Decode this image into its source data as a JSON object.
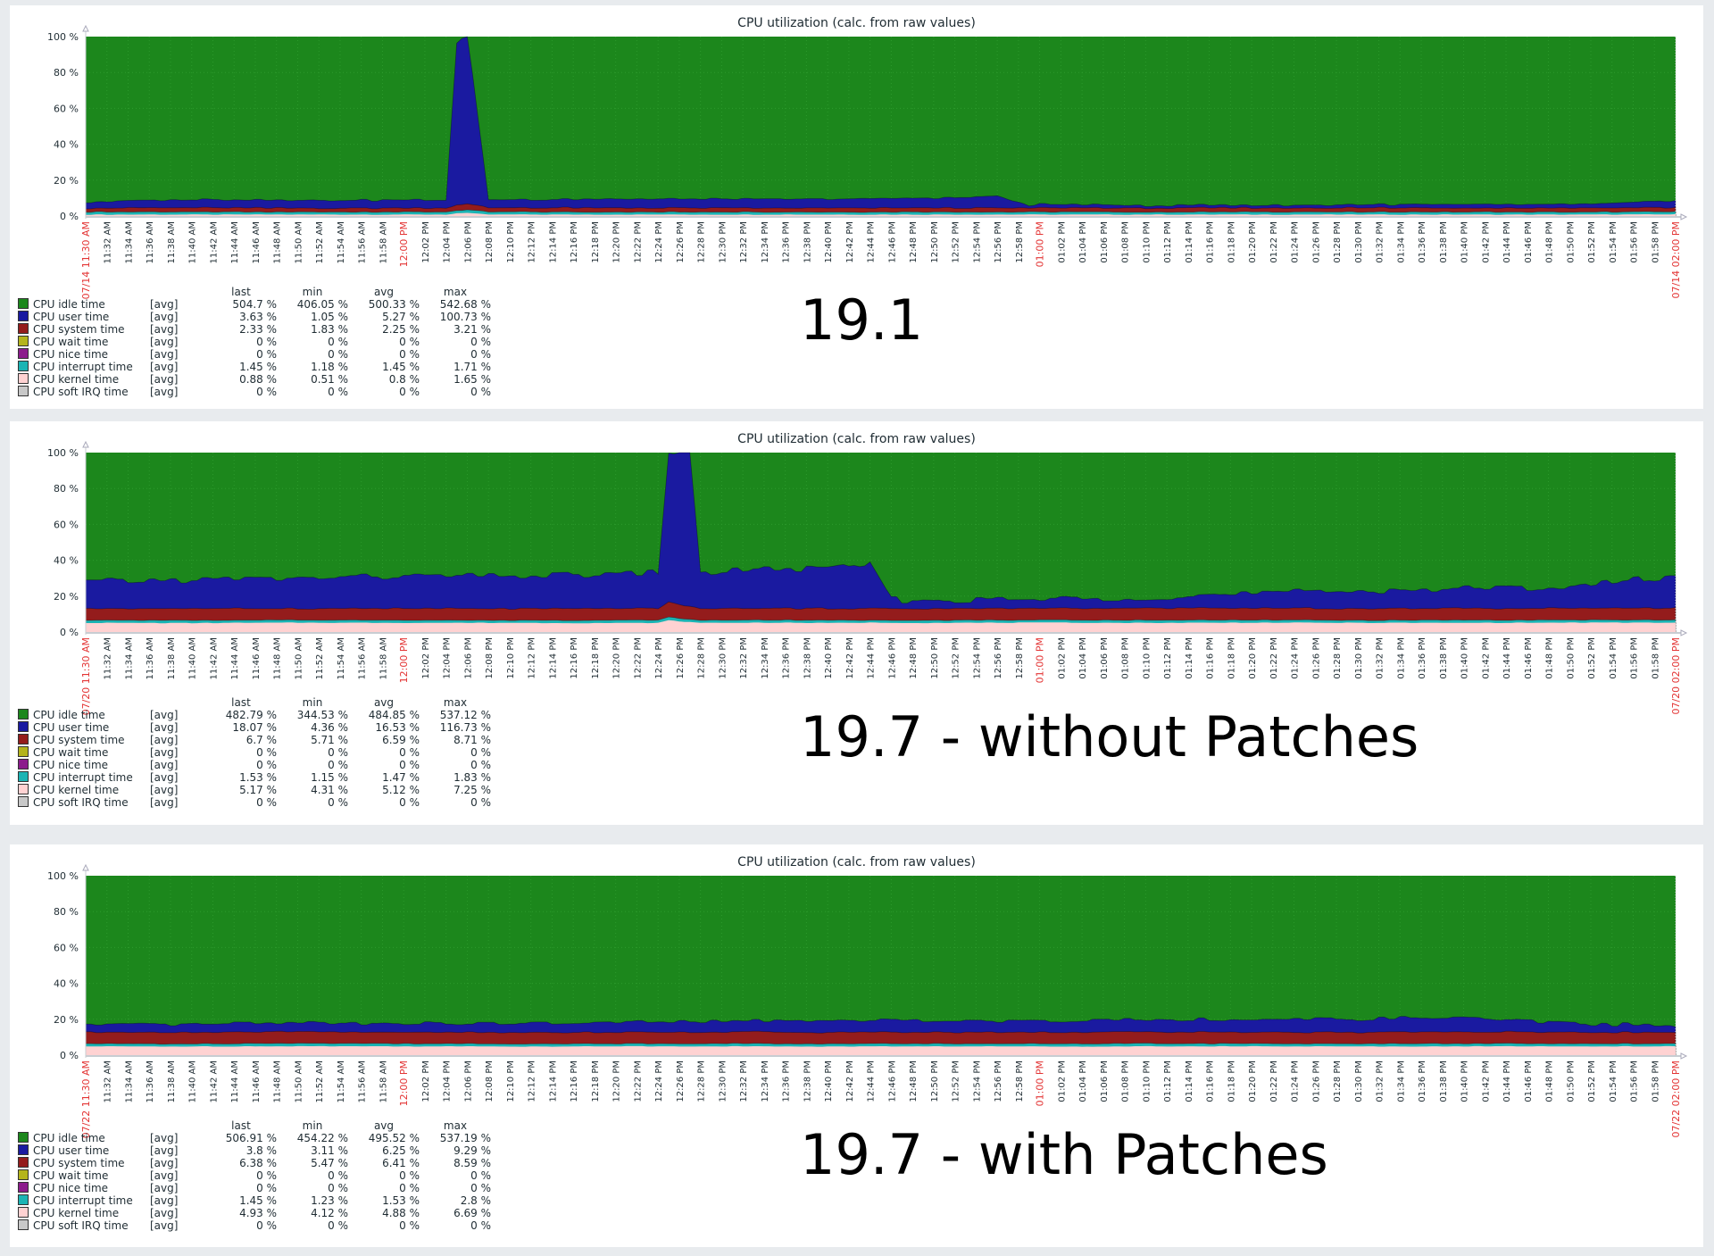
{
  "colors": {
    "idle": "#1c871c",
    "user": "#1a1aa0",
    "system": "#941c1c",
    "wait": "#b4b41c",
    "nice": "#8c1c8c",
    "interrupt": "#1cb4b4",
    "kernel": "#ffd2d2",
    "softirq": "#c8c8c8",
    "time_major": "#e33434",
    "page_bg": "#e8ebee"
  },
  "legend_headers": {
    "last": "last",
    "min": "min",
    "avg": "avg",
    "max": "max"
  },
  "y_ticks": [
    "100 %",
    "80 %",
    "60 %",
    "40 %",
    "20 %",
    "0 %"
  ],
  "x_tick_times": [
    "11:32 AM",
    "11:34 AM",
    "11:36 AM",
    "11:38 AM",
    "11:40 AM",
    "11:42 AM",
    "11:44 AM",
    "11:46 AM",
    "11:48 AM",
    "11:50 AM",
    "11:52 AM",
    "11:54 AM",
    "11:56 AM",
    "11:58 AM",
    "12:00 PM",
    "12:02 PM",
    "12:04 PM",
    "12:06 PM",
    "12:08 PM",
    "12:10 PM",
    "12:12 PM",
    "12:14 PM",
    "12:16 PM",
    "12:18 PM",
    "12:20 PM",
    "12:22 PM",
    "12:24 PM",
    "12:26 PM",
    "12:28 PM",
    "12:30 PM",
    "12:32 PM",
    "12:34 PM",
    "12:36 PM",
    "12:38 PM",
    "12:40 PM",
    "12:42 PM",
    "12:44 PM",
    "12:46 PM",
    "12:48 PM",
    "12:50 PM",
    "12:52 PM",
    "12:54 PM",
    "12:56 PM",
    "12:58 PM",
    "01:00 PM",
    "01:02 PM",
    "01:04 PM",
    "01:06 PM",
    "01:08 PM",
    "01:10 PM",
    "01:12 PM",
    "01:14 PM",
    "01:16 PM",
    "01:18 PM",
    "01:20 PM",
    "01:22 PM",
    "01:24 PM",
    "01:26 PM",
    "01:28 PM",
    "01:30 PM",
    "01:32 PM",
    "01:34 PM",
    "01:36 PM",
    "01:38 PM",
    "01:40 PM",
    "01:42 PM",
    "01:44 PM",
    "01:46 PM",
    "01:48 PM",
    "01:50 PM",
    "01:52 PM",
    "01:54 PM",
    "01:56 PM",
    "01:58 PM"
  ],
  "major_times": [
    "12:00 PM",
    "01:00 PM"
  ],
  "charts": [
    {
      "title": "CPU utilization (calc. from raw values)",
      "big_label": "19.1",
      "start_label": "07/14 11:30 AM",
      "end_label": "07/14 02:00 PM",
      "legend": [
        {
          "key": "idle",
          "name": "CPU idle time",
          "fn": "[avg]",
          "last": "504.7 %",
          "min": "406.05 %",
          "avg": "500.33 %",
          "max": "542.68 %"
        },
        {
          "key": "user",
          "name": "CPU user time",
          "fn": "[avg]",
          "last": "3.63 %",
          "min": "1.05 %",
          "avg": "5.27 %",
          "max": "100.73 %"
        },
        {
          "key": "system",
          "name": "CPU system time",
          "fn": "[avg]",
          "last": "2.33 %",
          "min": "1.83 %",
          "avg": "2.25 %",
          "max": "3.21 %"
        },
        {
          "key": "wait",
          "name": "CPU wait time",
          "fn": "[avg]",
          "last": "0 %",
          "min": "0 %",
          "avg": "0 %",
          "max": "0 %"
        },
        {
          "key": "nice",
          "name": "CPU nice time",
          "fn": "[avg]",
          "last": "0 %",
          "min": "0 %",
          "avg": "0 %",
          "max": "0 %"
        },
        {
          "key": "interrupt",
          "name": "CPU interrupt time",
          "fn": "[avg]",
          "last": "1.45 %",
          "min": "1.18 %",
          "avg": "1.45 %",
          "max": "1.71 %"
        },
        {
          "key": "kernel",
          "name": "CPU kernel time",
          "fn": "[avg]",
          "last": "0.88 %",
          "min": "0.51 %",
          "avg": "0.8 %",
          "max": "1.65 %"
        },
        {
          "key": "softirq",
          "name": "CPU soft IRQ time",
          "fn": "[avg]",
          "last": "0 %",
          "min": "0 %",
          "avg": "0 %",
          "max": "0 %"
        }
      ]
    },
    {
      "title": "CPU utilization (calc. from raw values)",
      "big_label": "19.7 - without Patches",
      "start_label": "07/20 11:30 AM",
      "end_label": "07/20 02:00 PM",
      "legend": [
        {
          "key": "idle",
          "name": "CPU idle time",
          "fn": "[avg]",
          "last": "482.79 %",
          "min": "344.53 %",
          "avg": "484.85 %",
          "max": "537.12 %"
        },
        {
          "key": "user",
          "name": "CPU user time",
          "fn": "[avg]",
          "last": "18.07 %",
          "min": "4.36 %",
          "avg": "16.53 %",
          "max": "116.73 %"
        },
        {
          "key": "system",
          "name": "CPU system time",
          "fn": "[avg]",
          "last": "6.7 %",
          "min": "5.71 %",
          "avg": "6.59 %",
          "max": "8.71 %"
        },
        {
          "key": "wait",
          "name": "CPU wait time",
          "fn": "[avg]",
          "last": "0 %",
          "min": "0 %",
          "avg": "0 %",
          "max": "0 %"
        },
        {
          "key": "nice",
          "name": "CPU nice time",
          "fn": "[avg]",
          "last": "0 %",
          "min": "0 %",
          "avg": "0 %",
          "max": "0 %"
        },
        {
          "key": "interrupt",
          "name": "CPU interrupt time",
          "fn": "[avg]",
          "last": "1.53 %",
          "min": "1.15 %",
          "avg": "1.47 %",
          "max": "1.83 %"
        },
        {
          "key": "kernel",
          "name": "CPU kernel time",
          "fn": "[avg]",
          "last": "5.17 %",
          "min": "4.31 %",
          "avg": "5.12 %",
          "max": "7.25 %"
        },
        {
          "key": "softirq",
          "name": "CPU soft IRQ time",
          "fn": "[avg]",
          "last": "0 %",
          "min": "0 %",
          "avg": "0 %",
          "max": "0 %"
        }
      ]
    },
    {
      "title": "CPU utilization (calc. from raw values)",
      "big_label": "19.7 - with Patches",
      "start_label": "07/22 11:30 AM",
      "end_label": "07/22 02:00 PM",
      "legend": [
        {
          "key": "idle",
          "name": "CPU idle time",
          "fn": "[avg]",
          "last": "506.91 %",
          "min": "454.22 %",
          "avg": "495.52 %",
          "max": "537.19 %"
        },
        {
          "key": "user",
          "name": "CPU user time",
          "fn": "[avg]",
          "last": "3.8 %",
          "min": "3.11 %",
          "avg": "6.25 %",
          "max": "9.29 %"
        },
        {
          "key": "system",
          "name": "CPU system time",
          "fn": "[avg]",
          "last": "6.38 %",
          "min": "5.47 %",
          "avg": "6.41 %",
          "max": "8.59 %"
        },
        {
          "key": "wait",
          "name": "CPU wait time",
          "fn": "[avg]",
          "last": "0 %",
          "min": "0 %",
          "avg": "0 %",
          "max": "0 %"
        },
        {
          "key": "nice",
          "name": "CPU nice time",
          "fn": "[avg]",
          "last": "0 %",
          "min": "0 %",
          "avg": "0 %",
          "max": "0 %"
        },
        {
          "key": "interrupt",
          "name": "CPU interrupt time",
          "fn": "[avg]",
          "last": "1.45 %",
          "min": "1.23 %",
          "avg": "1.53 %",
          "max": "2.8 %"
        },
        {
          "key": "kernel",
          "name": "CPU kernel time",
          "fn": "[avg]",
          "last": "4.93 %",
          "min": "4.12 %",
          "avg": "4.88 %",
          "max": "6.69 %"
        },
        {
          "key": "softirq",
          "name": "CPU soft IRQ time",
          "fn": "[avg]",
          "last": "0 %",
          "min": "0 %",
          "avg": "0 %",
          "max": "0 %"
        }
      ]
    }
  ],
  "chart_data": [
    {
      "type": "area",
      "title": "CPU utilization (calc. from raw values)",
      "annotation": "19.1",
      "xlabel": "",
      "ylabel": "",
      "ylim": [
        0,
        100
      ],
      "x_range": [
        "07/14 11:30 AM",
        "07/14 02:00 PM"
      ],
      "stacked": true,
      "grid": true,
      "x": [
        "11:30",
        "11:40",
        "11:50",
        "12:00",
        "12:04",
        "12:05",
        "12:06",
        "12:08",
        "12:20",
        "12:30",
        "12:40",
        "12:50",
        "12:56",
        "12:59",
        "01:00",
        "01:10",
        "01:20",
        "01:30",
        "01:40",
        "01:50",
        "02:00"
      ],
      "series": [
        {
          "name": "CPU kernel time",
          "values": [
            0.8,
            0.8,
            0.8,
            0.8,
            0.8,
            1.5,
            1.6,
            0.8,
            0.8,
            0.8,
            0.8,
            0.8,
            0.8,
            0.8,
            0.8,
            0.8,
            0.8,
            0.8,
            0.8,
            0.8,
            0.9
          ]
        },
        {
          "name": "CPU interrupt time",
          "values": [
            1.5,
            1.5,
            1.4,
            1.5,
            1.5,
            1.6,
            1.7,
            1.5,
            1.4,
            1.5,
            1.4,
            1.5,
            1.4,
            1.5,
            1.5,
            1.4,
            1.5,
            1.4,
            1.5,
            1.4,
            1.5
          ]
        },
        {
          "name": "CPU system time",
          "values": [
            2.2,
            2.3,
            2.1,
            2.2,
            2.3,
            3.0,
            3.2,
            2.3,
            2.3,
            2.2,
            2.2,
            2.3,
            2.3,
            2.0,
            2.3,
            2.2,
            2.2,
            2.3,
            2.3,
            2.3,
            2.3
          ]
        },
        {
          "name": "CPU user time",
          "values": [
            3.5,
            4.5,
            4.5,
            4.5,
            4.5,
            90,
            95,
            4.5,
            5.0,
            5.0,
            5.0,
            5.5,
            6.5,
            1.5,
            2.0,
            1.5,
            1.5,
            1.8,
            2.0,
            2.0,
            3.6
          ]
        },
        {
          "name": "CPU idle time",
          "values": [
            92,
            91,
            91.2,
            91,
            90.9,
            3.9,
            -1.5,
            90.9,
            90.5,
            90.5,
            90.6,
            89.9,
            89,
            94.2,
            93.4,
            94.1,
            94,
            93.7,
            93.4,
            93.5,
            91.7
          ]
        }
      ]
    },
    {
      "type": "area",
      "title": "CPU utilization (calc. from raw values)",
      "annotation": "19.7 - without Patches",
      "xlabel": "",
      "ylabel": "",
      "ylim": [
        0,
        100
      ],
      "x_range": [
        "07/20 11:30 AM",
        "07/20 02:00 PM"
      ],
      "stacked": true,
      "grid": true,
      "x": [
        "11:30",
        "11:40",
        "11:50",
        "12:00",
        "12:10",
        "12:20",
        "12:24",
        "12:25",
        "12:27",
        "12:28",
        "12:34",
        "12:40",
        "12:44",
        "12:46",
        "12:50",
        "01:00",
        "01:10",
        "01:20",
        "01:30",
        "01:40",
        "01:50",
        "02:00"
      ],
      "series": [
        {
          "name": "CPU kernel time",
          "values": [
            5.1,
            5.0,
            5.2,
            5.1,
            5.1,
            5.0,
            5.1,
            6.5,
            5.5,
            5.1,
            5.2,
            5.0,
            5.2,
            5.1,
            5.1,
            5.2,
            5.1,
            5.2,
            5.1,
            5.1,
            5.2,
            5.2
          ]
        },
        {
          "name": "CPU interrupt time",
          "values": [
            1.5,
            1.5,
            1.4,
            1.5,
            1.4,
            1.5,
            1.5,
            1.8,
            1.5,
            1.4,
            1.5,
            1.5,
            1.4,
            1.5,
            1.5,
            1.4,
            1.5,
            1.5,
            1.4,
            1.5,
            1.5,
            1.5
          ]
        },
        {
          "name": "CPU system time",
          "values": [
            6.5,
            6.6,
            6.4,
            6.6,
            6.5,
            6.6,
            6.5,
            8.5,
            7.0,
            6.5,
            6.6,
            6.5,
            6.6,
            6.6,
            6.5,
            6.5,
            6.7,
            6.6,
            6.5,
            6.6,
            6.6,
            6.7
          ]
        },
        {
          "name": "CPU user time",
          "values": [
            15,
            16,
            17,
            18,
            18,
            19,
            20,
            84,
            85,
            20,
            22,
            22,
            25,
            5,
            4.5,
            5,
            6,
            8,
            10,
            11,
            12,
            18
          ]
        },
        {
          "name": "CPU idle time",
          "values": [
            72,
            71,
            70,
            68,
            69,
            68,
            67,
            0,
            0,
            67,
            64,
            65,
            61,
            82,
            82,
            82,
            81,
            79,
            77,
            76,
            75,
            68
          ]
        }
      ]
    },
    {
      "type": "area",
      "title": "CPU utilization (calc. from raw values)",
      "annotation": "19.7 - with Patches",
      "xlabel": "",
      "ylabel": "",
      "ylim": [
        0,
        100
      ],
      "x_range": [
        "07/22 11:30 AM",
        "07/22 02:00 PM"
      ],
      "stacked": true,
      "grid": true,
      "x": [
        "11:30",
        "11:40",
        "11:50",
        "12:00",
        "12:10",
        "12:20",
        "12:30",
        "12:40",
        "12:50",
        "01:00",
        "01:10",
        "01:20",
        "01:30",
        "01:40",
        "01:50",
        "02:00"
      ],
      "series": [
        {
          "name": "CPU kernel time",
          "values": [
            4.9,
            4.8,
            5.0,
            4.9,
            4.8,
            4.9,
            4.9,
            4.8,
            4.9,
            4.8,
            4.9,
            4.9,
            4.8,
            4.9,
            4.9,
            4.9
          ]
        },
        {
          "name": "CPU interrupt time",
          "values": [
            1.5,
            1.5,
            1.6,
            1.5,
            1.5,
            1.5,
            1.6,
            1.5,
            1.5,
            1.5,
            1.6,
            1.5,
            1.5,
            1.6,
            1.5,
            1.5
          ]
        },
        {
          "name": "CPU system time",
          "values": [
            6.3,
            6.4,
            6.5,
            6.3,
            6.4,
            6.4,
            6.5,
            6.4,
            6.3,
            6.4,
            6.5,
            6.4,
            6.4,
            6.5,
            6.4,
            6.4
          ]
        },
        {
          "name": "CPU user time",
          "values": [
            4,
            4.5,
            5,
            5,
            5,
            5.5,
            6,
            6.5,
            6.5,
            6.5,
            7,
            7,
            7.5,
            8,
            5,
            3.8
          ]
        },
        {
          "name": "CPU idle time",
          "values": [
            83.3,
            82.8,
            81.9,
            82.3,
            82.3,
            81.7,
            81,
            80.8,
            80.8,
            80.8,
            80,
            80.2,
            79.8,
            79,
            82.2,
            83.4
          ]
        }
      ]
    }
  ]
}
